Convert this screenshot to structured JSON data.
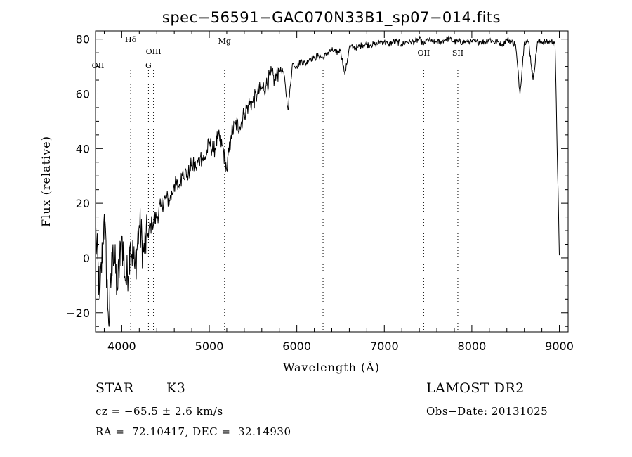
{
  "chart_data": {
    "type": "line",
    "title": "spec−56591−GAC070N33B1_sp07−014.fits",
    "xlabel": "Wavelength (Å)",
    "ylabel": "Flux (relative)",
    "xlim": [
      3700,
      9100
    ],
    "ylim": [
      -27,
      83
    ],
    "x_ticks": [
      4000,
      5000,
      6000,
      7000,
      8000,
      9000
    ],
    "x_tick_labels": [
      "4000",
      "5000",
      "6000",
      "7000",
      "8000",
      "9000"
    ],
    "y_ticks": [
      -20,
      0,
      20,
      40,
      60,
      80
    ],
    "y_tick_labels": [
      "−20",
      "0",
      "20",
      "40",
      "60",
      "80"
    ],
    "grid": false,
    "series": [
      {
        "x": [
          3700,
          3750,
          3800,
          3850,
          3900,
          3950,
          4000,
          4050,
          4100,
          4150,
          4200,
          4250,
          4300,
          4350,
          4400,
          4450,
          4500,
          4550,
          4600,
          4650,
          4700,
          4750,
          4800,
          4850,
          4900,
          4950,
          5000,
          5050,
          5100,
          5150,
          5200,
          5250,
          5300,
          5350,
          5400,
          5450,
          5500,
          5550,
          5600,
          5650,
          5700,
          5750,
          5800,
          5850,
          5900,
          5950,
          6000,
          6050,
          6100,
          6150,
          6200,
          6250,
          6300,
          6350,
          6400,
          6450,
          6500,
          6550,
          6600,
          6650,
          6700,
          6750,
          6800,
          6850,
          6900,
          6950,
          7000,
          7050,
          7100,
          7150,
          7200,
          7250,
          7300,
          7350,
          7400,
          7450,
          7500,
          7550,
          7600,
          7650,
          7700,
          7750,
          7800,
          7850,
          7900,
          7950,
          8000,
          8050,
          8100,
          8150,
          8200,
          8250,
          8300,
          8350,
          8400,
          8450,
          8500,
          8550,
          8600,
          8650,
          8700,
          8750,
          8800,
          8850,
          8900,
          8950,
          9000
        ],
        "y": [
          10,
          -15,
          16,
          -24,
          5,
          -12,
          8,
          -10,
          6,
          -4,
          12,
          2,
          9,
          13,
          15,
          19,
          22,
          21,
          27,
          26,
          32,
          30,
          34,
          33,
          37,
          36,
          42,
          39,
          44,
          41,
          32,
          45,
          49,
          48,
          53,
          56,
          57,
          60,
          62,
          63,
          67,
          65,
          69,
          68,
          54,
          71,
          70,
          72,
          71,
          73,
          73,
          74,
          73,
          75,
          76,
          75,
          76,
          67,
          77,
          77,
          77,
          78,
          78,
          78,
          78,
          79,
          79,
          78,
          79,
          79,
          78,
          79,
          79,
          79,
          80,
          78,
          80,
          79,
          79,
          79,
          80,
          80,
          79,
          79,
          79,
          79,
          79,
          79,
          79,
          79,
          80,
          79,
          79,
          78,
          80,
          79,
          78,
          60,
          79,
          79,
          65,
          79,
          79,
          79,
          79,
          79,
          1
        ]
      }
    ],
    "lines": [
      {
        "label": "OII",
        "x": 3728
      },
      {
        "label": "Hδ",
        "x": 4102
      },
      {
        "label": "G",
        "x": 4305
      },
      {
        "label": "OIII",
        "x": 4363
      },
      {
        "label": "Mg",
        "x": 5175
      },
      {
        "label": "",
        "x": 6300
      },
      {
        "label": "OII",
        "x": 7450
      },
      {
        "label": "SII",
        "x": 7840
      }
    ]
  },
  "info": {
    "object_type": "STAR",
    "subclass": "K3",
    "survey": "LAMOST DR2",
    "cz": "cz = −65.5 ± 2.6 km/s",
    "obs_date": "Obs−Date: 20131025",
    "coords": "RA =  72.10417, DEC =  32.14930"
  }
}
